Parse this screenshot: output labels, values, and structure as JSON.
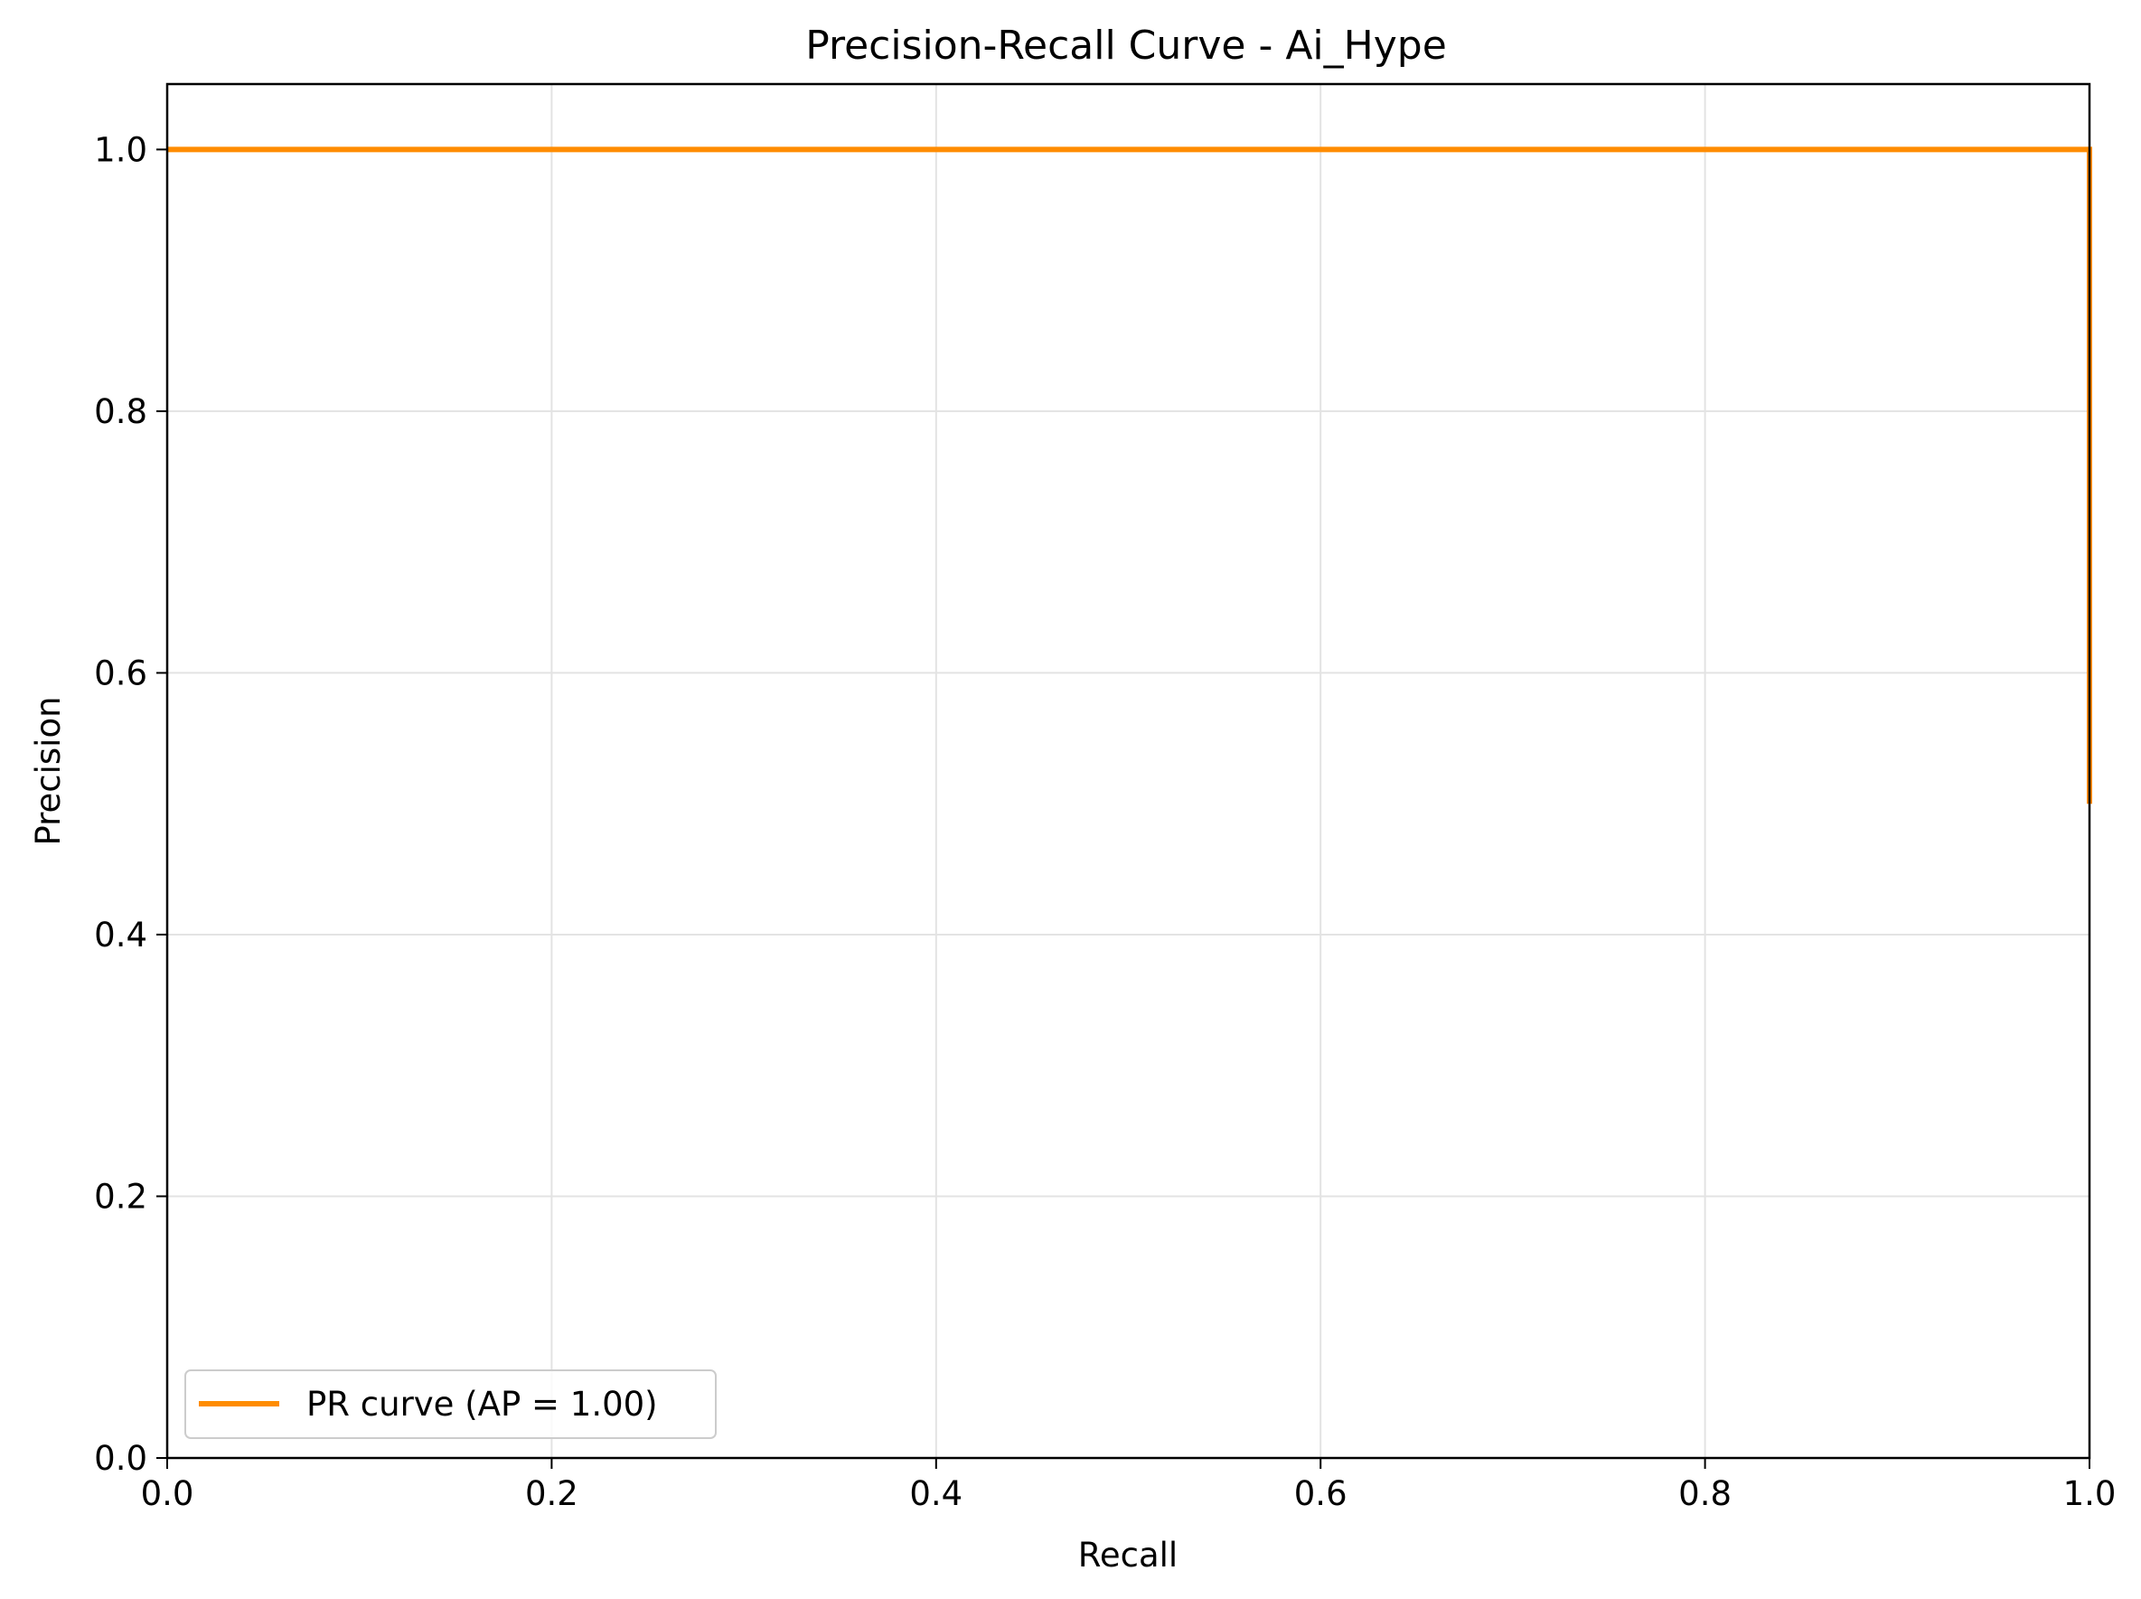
{
  "chart_data": {
    "type": "line",
    "title": "Precision-Recall Curve - Ai_Hype",
    "xlabel": "Recall",
    "ylabel": "Precision",
    "xlim": [
      0.0,
      1.0
    ],
    "ylim": [
      0.0,
      1.05
    ],
    "xticks": [
      0.0,
      0.2,
      0.4,
      0.6,
      0.8,
      1.0
    ],
    "xtick_labels": [
      "0.0",
      "0.2",
      "0.4",
      "0.6",
      "0.8",
      "1.0"
    ],
    "yticks": [
      0.0,
      0.2,
      0.4,
      0.6,
      0.8,
      1.0
    ],
    "ytick_labels": [
      "0.0",
      "0.2",
      "0.4",
      "0.6",
      "0.8",
      "1.0"
    ],
    "grid": true,
    "legend_position": "lower-left",
    "series": [
      {
        "name": "PR curve (AP = 1.00)",
        "color": "#ff8c00",
        "x": [
          0.0,
          1.0,
          1.0
        ],
        "y": [
          1.0,
          1.0,
          0.5
        ]
      }
    ]
  }
}
